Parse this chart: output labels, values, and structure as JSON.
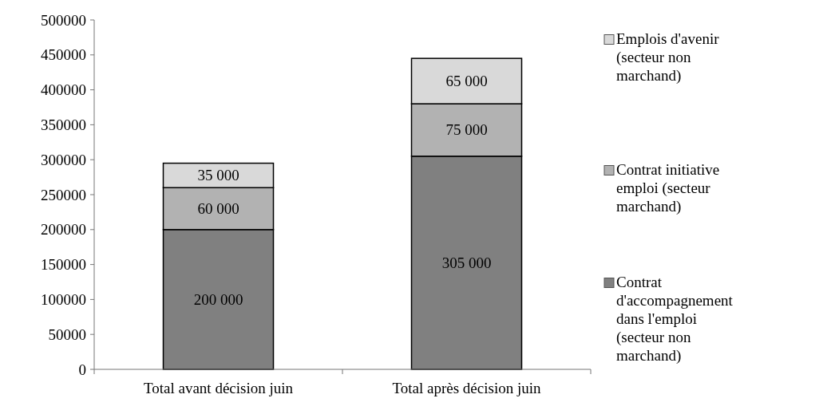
{
  "chart_data": {
    "type": "bar",
    "stacked": true,
    "categories": [
      "Total avant décision juin",
      "Total après décision juin"
    ],
    "series": [
      {
        "name": "Contrat d'accompagnement dans l'emploi (secteur non marchand)",
        "color": "#808080",
        "values": [
          200000,
          305000
        ],
        "value_labels": [
          "200 000",
          "305 000"
        ]
      },
      {
        "name": "Contrat initiative emploi (secteur marchand)",
        "color": "#b2b2b2",
        "values": [
          60000,
          75000
        ],
        "value_labels": [
          "60 000",
          "75 000"
        ]
      },
      {
        "name": "Emplois d'avenir (secteur non marchand)",
        "color": "#d9d9d9",
        "values": [
          35000,
          65000
        ],
        "value_labels": [
          "35 000",
          "65 000"
        ]
      }
    ],
    "ylim": [
      0,
      500000
    ],
    "yticks": [
      0,
      50000,
      100000,
      150000,
      200000,
      250000,
      300000,
      350000,
      400000,
      450000,
      500000
    ],
    "grid": false,
    "legend": "right"
  }
}
